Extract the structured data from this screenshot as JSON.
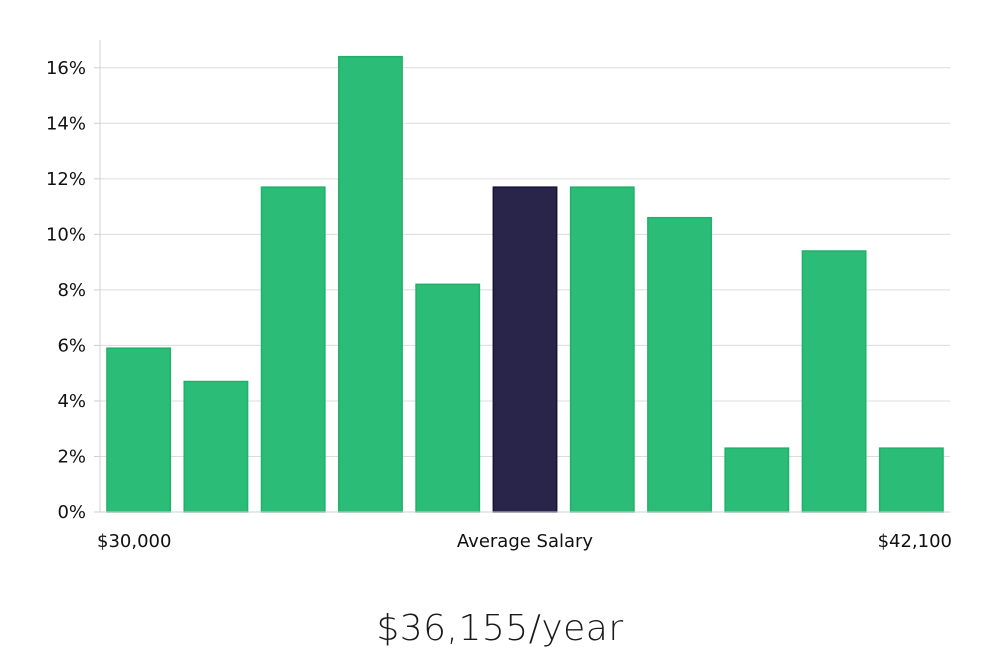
{
  "chart_data": {
    "type": "bar",
    "categories": [
      "",
      "",
      "",
      "",
      "",
      "",
      "",
      "",
      "",
      "",
      ""
    ],
    "values": [
      5.9,
      4.7,
      11.7,
      16.4,
      8.2,
      11.7,
      11.7,
      10.6,
      2.3,
      9.4,
      2.3
    ],
    "highlight_index": 5,
    "ylim": [
      0,
      17
    ],
    "y_ticks": [
      0,
      2,
      4,
      6,
      8,
      10,
      12,
      14,
      16
    ],
    "y_tick_format": "%",
    "grid": true,
    "x_axis_labels": {
      "left": "$30,000",
      "center": "Average Salary",
      "right": "$42,100"
    },
    "colors": {
      "bar": "#2bbd77",
      "bar_stroke": "#20b06a",
      "highlight": "#28244a",
      "highlight_stroke": "#16123a"
    }
  },
  "summary": {
    "value_text": "$36,155/year"
  }
}
